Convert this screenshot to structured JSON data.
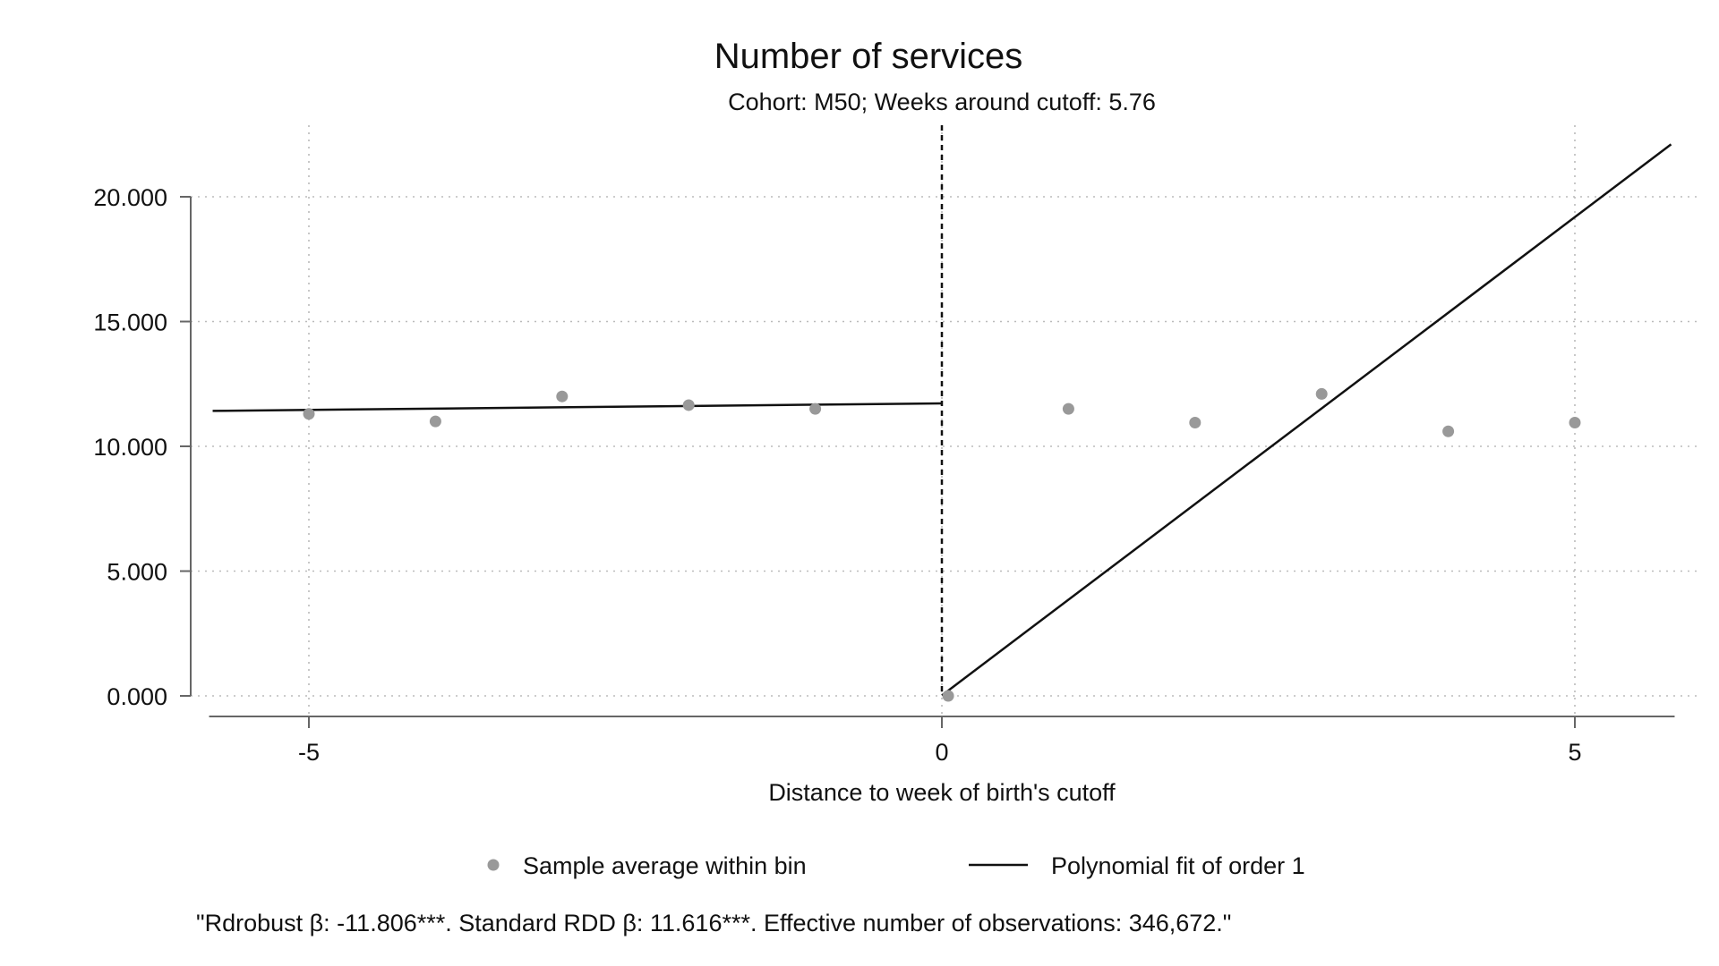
{
  "chart_data": {
    "type": "scatter",
    "title": "Number of services",
    "subtitle": "Cohort: M50; Weeks around cutoff: 5.76",
    "xlabel": "Distance to week of birth's cutoff",
    "ylabel": "",
    "xlim": [
      -5.76,
      5.76
    ],
    "ylim": [
      0,
      20
    ],
    "x_ticks": [
      -5,
      0,
      5
    ],
    "x_tick_labels": [
      "-5",
      "0",
      "5"
    ],
    "y_ticks": [
      0,
      5,
      10,
      15,
      20
    ],
    "y_tick_labels": [
      "0.000",
      "5.000",
      "10.000",
      "15.000",
      "20.000"
    ],
    "grid": true,
    "cutoff": 0,
    "series": [
      {
        "name": "Sample average within bin",
        "kind": "scatter",
        "color": "#999999",
        "points": [
          {
            "x": -5,
            "y": 11.3
          },
          {
            "x": -4,
            "y": 11.0
          },
          {
            "x": -3,
            "y": 12.0
          },
          {
            "x": -2,
            "y": 11.65
          },
          {
            "x": -1,
            "y": 11.5
          },
          {
            "x": 0.05,
            "y": 0.0
          },
          {
            "x": 1,
            "y": 11.5
          },
          {
            "x": 2,
            "y": 10.95
          },
          {
            "x": 3,
            "y": 12.1
          },
          {
            "x": 4,
            "y": 10.6
          },
          {
            "x": 5,
            "y": 10.95
          }
        ]
      },
      {
        "name": "Polynomial fit of order 1",
        "kind": "line",
        "color": "#111111",
        "segments": [
          [
            {
              "x": -5.76,
              "y": 11.42
            },
            {
              "x": 0,
              "y": 11.72
            }
          ],
          [
            {
              "x": 0,
              "y": 0.02
            },
            {
              "x": 5.76,
              "y": 22.1
            }
          ]
        ]
      }
    ],
    "legend": {
      "placement": "bottom",
      "items": [
        {
          "label": "Sample average within bin",
          "symbol": "dot"
        },
        {
          "label": "Polynomial fit of order 1",
          "symbol": "line"
        }
      ]
    },
    "note": "\"Rdrobust β: -11.806***. Standard RDD β: 11.616***. Effective number of observations: 346,672.\""
  }
}
